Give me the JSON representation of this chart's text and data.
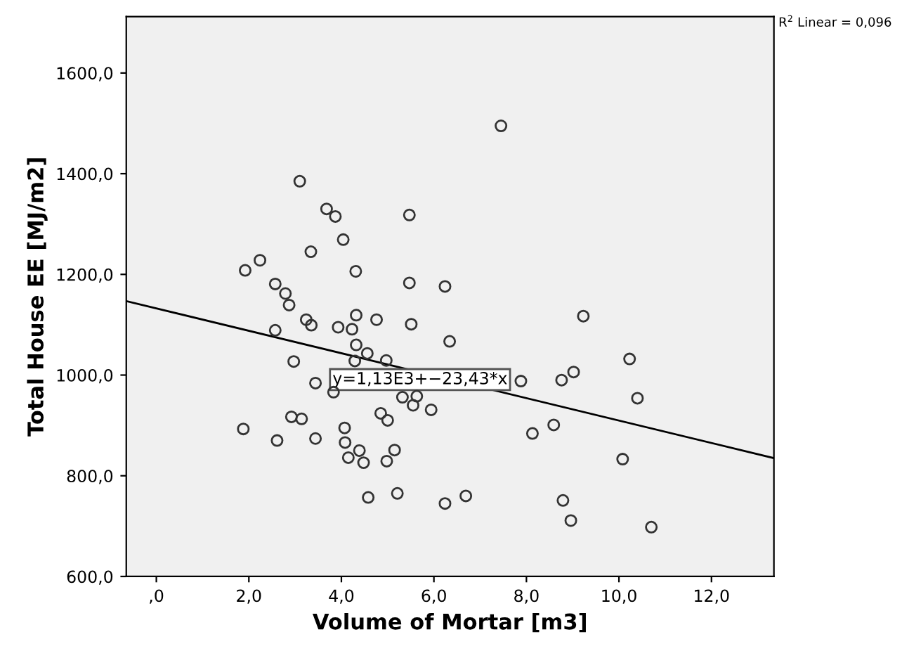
{
  "chart_data": {
    "type": "scatter",
    "xlabel": "Volume of Mortar [m3]",
    "ylabel": "Total House EE [MJ/m2]",
    "xlim": [
      -0.65,
      13.35
    ],
    "ylim": [
      600,
      1712
    ],
    "xticks": [
      {
        "value": 0,
        "label": ",0"
      },
      {
        "value": 2,
        "label": "2,0"
      },
      {
        "value": 4,
        "label": "4,0"
      },
      {
        "value": 6,
        "label": "6,0"
      },
      {
        "value": 8,
        "label": "8,0"
      },
      {
        "value": 10,
        "label": "10,0"
      },
      {
        "value": 12,
        "label": "12,0"
      }
    ],
    "yticks": [
      {
        "value": 600,
        "label": "600,0"
      },
      {
        "value": 800,
        "label": "800,0"
      },
      {
        "value": 1000,
        "label": "1000,0"
      },
      {
        "value": 1200,
        "label": "1200,0"
      },
      {
        "value": 1400,
        "label": "1400,0"
      },
      {
        "value": 1600,
        "label": "1600,0"
      }
    ],
    "grid": false,
    "marker": "circle",
    "series": [
      {
        "color": "#333333",
        "x": [
          3.1,
          3.68,
          3.87,
          5.47,
          4.04,
          3.34,
          2.24,
          1.92,
          4.31,
          5.47,
          6.24,
          2.57,
          2.79,
          2.87,
          4.32,
          3.24,
          3.35,
          4.76,
          3.93,
          4.23,
          5.51,
          2.57,
          6.34,
          4.32,
          4.56,
          4.29,
          4.97,
          2.97,
          3.44,
          3.83,
          5.32,
          5.63,
          5.55,
          5.94,
          4.85,
          5.0,
          2.92,
          3.14,
          1.88,
          4.07,
          2.61,
          3.44,
          4.08,
          4.39,
          5.15,
          4.15,
          4.48,
          4.98,
          4.58,
          5.21,
          6.24,
          6.69,
          7.45,
          9.23,
          10.23,
          9.02,
          8.76,
          7.88,
          10.4,
          8.59,
          8.13,
          10.08,
          8.79,
          8.96,
          10.7
        ],
        "values": [
          1385,
          1330,
          1315,
          1318,
          1269,
          1245,
          1228,
          1208,
          1206,
          1183,
          1176,
          1181,
          1162,
          1139,
          1119,
          1110,
          1099,
          1110,
          1095,
          1091,
          1101,
          1089,
          1067,
          1060,
          1043,
          1028,
          1029,
          1027,
          984,
          966,
          956,
          958,
          940,
          931,
          924,
          910,
          917,
          913,
          893,
          895,
          870,
          874,
          866,
          850,
          851,
          836,
          826,
          829,
          757,
          765,
          745,
          760,
          1495,
          1117,
          1032,
          1006,
          990,
          988,
          954,
          901,
          884,
          833,
          751,
          711,
          698
        ]
      },
      {
        "type": "line",
        "color": "#000000",
        "marker": "none",
        "x": [
          -0.65,
          13.35
        ],
        "values": [
          1147,
          835
        ]
      }
    ],
    "annotations": [
      {
        "text": "y=1,13E3+−23,43*x",
        "x": 5.7,
        "y": 991
      },
      "R$^{2}$ Linear = 0,096"
    ]
  }
}
